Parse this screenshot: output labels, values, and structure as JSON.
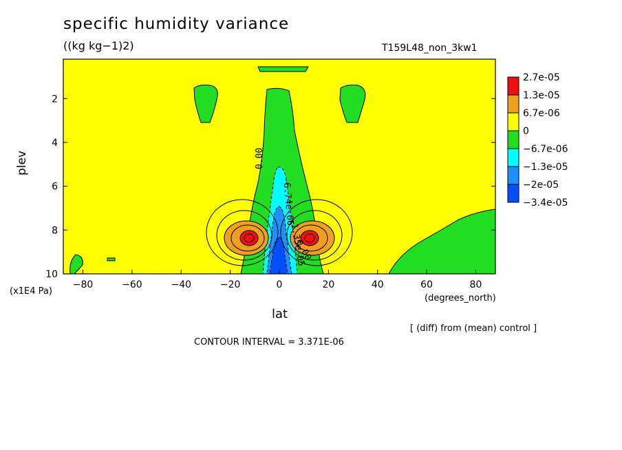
{
  "title": "specific humidity variance",
  "units": "((kg kg−1)2)",
  "experiment": "T159L48_non_3kw1",
  "diff_note": "[ (diff) from (mean) control ]",
  "contour_interval": "CONTOUR INTERVAL = 3.371E-06",
  "colors": {
    "yellow": "#ffff00",
    "green": "#22dd22",
    "cyan": "#00ffff",
    "lightblue": "#1e90ff",
    "blue": "#0050ff",
    "orange": "#f0a020",
    "red": "#f01010"
  },
  "chart_data": {
    "type": "contour",
    "xlabel": "lat",
    "xunits": "(degrees_north)",
    "ylabel": "plev",
    "yunits": "(x1E4 Pa)",
    "xlim": [
      -88,
      88
    ],
    "ylim": [
      10,
      0.2
    ],
    "x_ticks": [
      -80,
      -60,
      -40,
      -20,
      0,
      20,
      40,
      60,
      80
    ],
    "y_ticks": [
      2,
      4,
      6,
      8,
      10
    ],
    "legend": {
      "placement": "right",
      "levels": [
        "2.7e-05",
        "1.3e-05",
        "6.7e-06",
        "0",
        "-6.7e-06",
        "-1.3e-05",
        "-2e-05",
        "-3.4e-05"
      ],
      "colors": [
        "#f01010",
        "#f0a020",
        "#ffff00",
        "#22dd22",
        "#00ffff",
        "#1e90ff",
        "#0050ff"
      ]
    },
    "contour_labels": [
      "0.00",
      "-6.74e-06",
      "-1.35e-05",
      "0.00"
    ]
  }
}
